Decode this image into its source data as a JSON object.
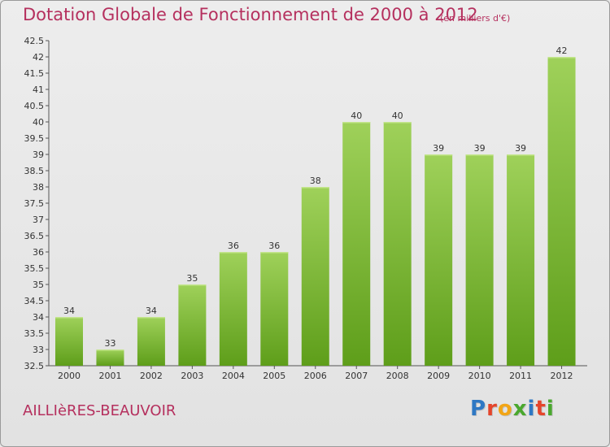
{
  "header": {
    "title": "Dotation Globale de Fonctionnement de 2000 à 2012",
    "subtitle": "(en milliers d'€)"
  },
  "footer": {
    "commune": "AILLIèRES-BEAUVOIR",
    "logo_letters": [
      {
        "ch": "P",
        "color": "#2f78c4"
      },
      {
        "ch": "r",
        "color": "#e5452b"
      },
      {
        "ch": "o",
        "color": "#f2a516"
      },
      {
        "ch": "x",
        "color": "#4aa82e"
      },
      {
        "ch": "i",
        "color": "#2f78c4"
      },
      {
        "ch": "t",
        "color": "#e5452b"
      },
      {
        "ch": "i",
        "color": "#4aa82e"
      }
    ]
  },
  "chart_data": {
    "type": "bar",
    "title": "Dotation Globale de Fonctionnement de 2000 à 2012",
    "subtitle": "(en milliers d'€)",
    "categories": [
      "2000",
      "2001",
      "2002",
      "2003",
      "2004",
      "2005",
      "2006",
      "2007",
      "2008",
      "2009",
      "2010",
      "2011",
      "2012"
    ],
    "values": [
      34,
      33,
      34,
      35,
      36,
      36,
      38,
      40,
      40,
      39,
      39,
      39,
      42
    ],
    "data_labels": [
      "34",
      "33",
      "34",
      "35",
      "36",
      "36",
      "38",
      "40",
      "40",
      "39",
      "39",
      "39",
      "42"
    ],
    "ylim": [
      32.5,
      42.5
    ],
    "yticks": [
      "32.5",
      "33",
      "33.5",
      "34",
      "34.5",
      "35",
      "35.5",
      "36",
      "36.5",
      "37",
      "37.5",
      "38",
      "38.5",
      "39",
      "39.5",
      "40",
      "40.5",
      "41",
      "41.5",
      "42",
      "42.5"
    ],
    "grid": false,
    "colors": {
      "bar_top": "#9fd15a",
      "bar_bottom": "#5e9e1a",
      "axis": "#555555"
    }
  }
}
